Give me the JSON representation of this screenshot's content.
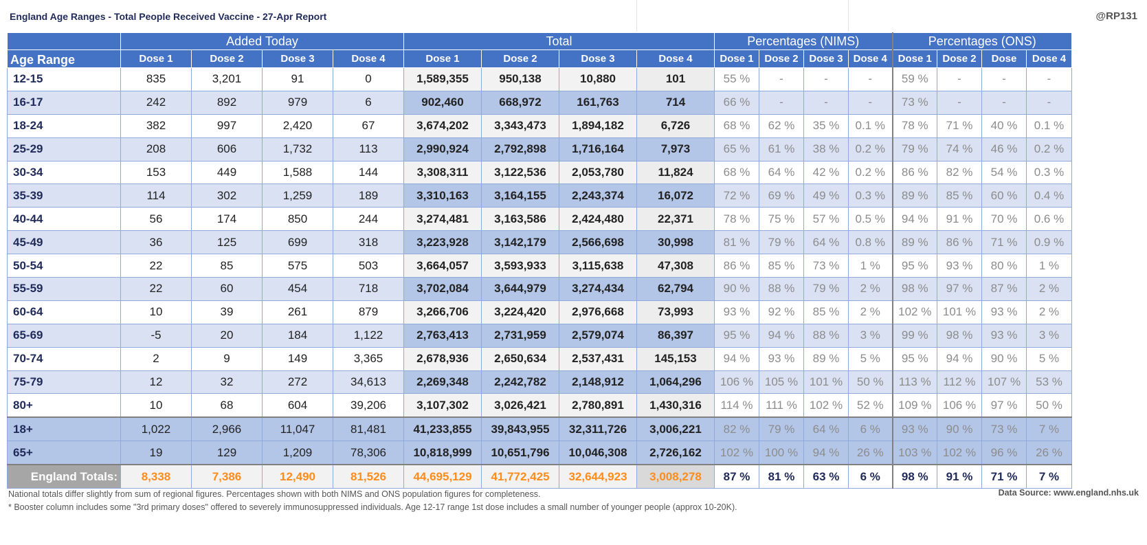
{
  "header": {
    "title": "England Age Ranges - Total People Received Vaccine - 27-Apr Report",
    "handle": "@RP131"
  },
  "table": {
    "groups": [
      "Added Today",
      "Total",
      "Percentages (NIMS)",
      "Percentages (ONS)"
    ],
    "age_header": "Age Range",
    "subheaders": [
      "Dose 1",
      "Dose 2",
      "Dose 3",
      "Dose 4",
      "Dose 1",
      "Dose 2",
      "Dose 3",
      "Dose 4",
      "Dose 1",
      "Dose 2",
      "Dose 3",
      "Dose 4",
      "Dose 1",
      "Dose 2",
      "Dose",
      "Dose 4"
    ],
    "rows": [
      {
        "age": "12-15",
        "added": [
          "835",
          "3,201",
          "91",
          "0"
        ],
        "total": [
          "1,589,355",
          "950,138",
          "10,880",
          "101"
        ],
        "nims": [
          "55 %",
          "-",
          "-",
          "-"
        ],
        "ons": [
          "59 %",
          "-",
          "-",
          "-"
        ]
      },
      {
        "age": "16-17",
        "added": [
          "242",
          "892",
          "979",
          "6"
        ],
        "total": [
          "902,460",
          "668,972",
          "161,763",
          "714"
        ],
        "nims": [
          "66 %",
          "-",
          "-",
          "-"
        ],
        "ons": [
          "73 %",
          "-",
          "-",
          "-"
        ]
      },
      {
        "age": "18-24",
        "added": [
          "382",
          "997",
          "2,420",
          "67"
        ],
        "total": [
          "3,674,202",
          "3,343,473",
          "1,894,182",
          "6,726"
        ],
        "nims": [
          "68 %",
          "62 %",
          "35 %",
          "0.1 %"
        ],
        "ons": [
          "78 %",
          "71 %",
          "40 %",
          "0.1 %"
        ]
      },
      {
        "age": "25-29",
        "added": [
          "208",
          "606",
          "1,732",
          "113"
        ],
        "total": [
          "2,990,924",
          "2,792,898",
          "1,716,164",
          "7,973"
        ],
        "nims": [
          "65 %",
          "61 %",
          "38 %",
          "0.2 %"
        ],
        "ons": [
          "79 %",
          "74 %",
          "46 %",
          "0.2 %"
        ]
      },
      {
        "age": "30-34",
        "added": [
          "153",
          "449",
          "1,588",
          "144"
        ],
        "total": [
          "3,308,311",
          "3,122,536",
          "2,053,780",
          "11,824"
        ],
        "nims": [
          "68 %",
          "64 %",
          "42 %",
          "0.2 %"
        ],
        "ons": [
          "86 %",
          "82 %",
          "54 %",
          "0.3 %"
        ]
      },
      {
        "age": "35-39",
        "added": [
          "114",
          "302",
          "1,259",
          "189"
        ],
        "total": [
          "3,310,163",
          "3,164,155",
          "2,243,374",
          "16,072"
        ],
        "nims": [
          "72 %",
          "69 %",
          "49 %",
          "0.3 %"
        ],
        "ons": [
          "89 %",
          "85 %",
          "60 %",
          "0.4 %"
        ]
      },
      {
        "age": "40-44",
        "added": [
          "56",
          "174",
          "850",
          "244"
        ],
        "total": [
          "3,274,481",
          "3,163,586",
          "2,424,480",
          "22,371"
        ],
        "nims": [
          "78 %",
          "75 %",
          "57 %",
          "0.5 %"
        ],
        "ons": [
          "94 %",
          "91 %",
          "70 %",
          "0.6 %"
        ]
      },
      {
        "age": "45-49",
        "added": [
          "36",
          "125",
          "699",
          "318"
        ],
        "total": [
          "3,223,928",
          "3,142,179",
          "2,566,698",
          "30,998"
        ],
        "nims": [
          "81 %",
          "79 %",
          "64 %",
          "0.8 %"
        ],
        "ons": [
          "89 %",
          "86 %",
          "71 %",
          "0.9 %"
        ]
      },
      {
        "age": "50-54",
        "added": [
          "22",
          "85",
          "575",
          "503"
        ],
        "total": [
          "3,664,057",
          "3,593,933",
          "3,115,638",
          "47,308"
        ],
        "nims": [
          "86 %",
          "85 %",
          "73 %",
          "1 %"
        ],
        "ons": [
          "95 %",
          "93 %",
          "80 %",
          "1 %"
        ]
      },
      {
        "age": "55-59",
        "added": [
          "22",
          "60",
          "454",
          "718"
        ],
        "total": [
          "3,702,084",
          "3,644,979",
          "3,274,434",
          "62,794"
        ],
        "nims": [
          "90 %",
          "88 %",
          "79 %",
          "2 %"
        ],
        "ons": [
          "98 %",
          "97 %",
          "87 %",
          "2 %"
        ]
      },
      {
        "age": "60-64",
        "added": [
          "10",
          "39",
          "261",
          "879"
        ],
        "total": [
          "3,266,706",
          "3,224,420",
          "2,976,668",
          "73,993"
        ],
        "nims": [
          "93 %",
          "92 %",
          "85 %",
          "2 %"
        ],
        "ons": [
          "102 %",
          "101 %",
          "93 %",
          "2 %"
        ]
      },
      {
        "age": "65-69",
        "added": [
          "-5",
          "20",
          "184",
          "1,122"
        ],
        "total": [
          "2,763,413",
          "2,731,959",
          "2,579,074",
          "86,397"
        ],
        "nims": [
          "95 %",
          "94 %",
          "88 %",
          "3 %"
        ],
        "ons": [
          "99 %",
          "98 %",
          "93 %",
          "3 %"
        ]
      },
      {
        "age": "70-74",
        "added": [
          "2",
          "9",
          "149",
          "3,365"
        ],
        "total": [
          "2,678,936",
          "2,650,634",
          "2,537,431",
          "145,153"
        ],
        "nims": [
          "94 %",
          "93 %",
          "89 %",
          "5 %"
        ],
        "ons": [
          "95 %",
          "94 %",
          "90 %",
          "5 %"
        ]
      },
      {
        "age": "75-79",
        "added": [
          "12",
          "32",
          "272",
          "34,613"
        ],
        "total": [
          "2,269,348",
          "2,242,782",
          "2,148,912",
          "1,064,296"
        ],
        "nims": [
          "106 %",
          "105 %",
          "101 %",
          "50 %"
        ],
        "ons": [
          "113 %",
          "112 %",
          "107 %",
          "53 %"
        ]
      },
      {
        "age": "80+",
        "added": [
          "10",
          "68",
          "604",
          "39,206"
        ],
        "total": [
          "3,107,302",
          "3,026,421",
          "2,780,891",
          "1,430,316"
        ],
        "nims": [
          "114 %",
          "111 %",
          "102 %",
          "52 %"
        ],
        "ons": [
          "109 %",
          "106 %",
          "97 %",
          "50 %"
        ]
      }
    ],
    "summary": [
      {
        "age": "18+",
        "added": [
          "1,022",
          "2,966",
          "11,047",
          "81,481"
        ],
        "total": [
          "41,233,855",
          "39,843,955",
          "32,311,726",
          "3,006,221"
        ],
        "nims": [
          "82 %",
          "79 %",
          "64 %",
          "6 %"
        ],
        "ons": [
          "93 %",
          "90 %",
          "73 %",
          "7 %"
        ]
      },
      {
        "age": "65+",
        "added": [
          "19",
          "129",
          "1,209",
          "78,306"
        ],
        "total": [
          "10,818,999",
          "10,651,796",
          "10,046,308",
          "2,726,162"
        ],
        "nims": [
          "102 %",
          "100 %",
          "94 %",
          "26 %"
        ],
        "ons": [
          "103 %",
          "102 %",
          "96 %",
          "26 %"
        ]
      }
    ],
    "totals": {
      "label": "England Totals:",
      "added": [
        "8,338",
        "7,386",
        "12,490",
        "81,526"
      ],
      "total": [
        "44,695,129",
        "41,772,425",
        "32,644,923",
        "3,008,278"
      ],
      "nims": [
        "87 %",
        "81 %",
        "63 %",
        "6 %"
      ],
      "ons": [
        "98 %",
        "91 %",
        "71 %",
        "7 %"
      ]
    }
  },
  "footer": {
    "note1": "National totals differ slightly from sum of regional figures. Percentages shown with both NIMS and ONS population figures for completeness.",
    "note2": "* Booster column includes some \"3rd primary doses\" offered to severely immunosuppressed individuals. Age 12-17 range 1st dose includes a small number of younger people (approx 10-20K).",
    "source": "Data Source: www.england.nhs.uk"
  }
}
